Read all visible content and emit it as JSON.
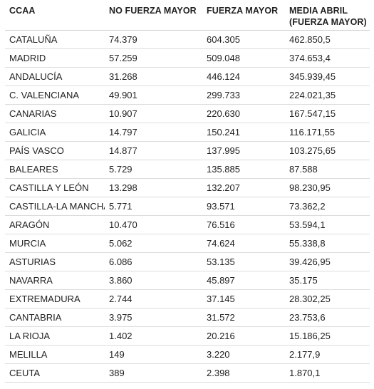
{
  "table": {
    "headers": [
      "CCAA",
      "NO FUERZA MAYOR",
      "FUERZA MAYOR",
      "MEDIA ABRIL (FUERZA MAYOR)"
    ],
    "rows": [
      [
        "CATALUÑA",
        "74.379",
        "604.305",
        "462.850,5"
      ],
      [
        "MADRID",
        "57.259",
        "509.048",
        "374.653,4"
      ],
      [
        "ANDALUCÍA",
        "31.268",
        "446.124",
        "345.939,45"
      ],
      [
        "C. VALENCIANA",
        "49.901",
        "299.733",
        "224.021,35"
      ],
      [
        "CANARIAS",
        "10.907",
        "220.630",
        "167.547,15"
      ],
      [
        "GALICIA",
        "14.797",
        "150.241",
        "116.171,55"
      ],
      [
        "PAÍS VASCO",
        "14.877",
        "137.995",
        "103.275,65"
      ],
      [
        "BALEARES",
        "5.729",
        "135.885",
        "87.588"
      ],
      [
        "CASTILLA Y LEÓN",
        "13.298",
        "132.207",
        "98.230,95"
      ],
      [
        "CASTILLA-LA MANCHA",
        "5.771",
        "93.571",
        "73.362,2"
      ],
      [
        "ARAGÓN",
        "10.470",
        "76.516",
        "53.594,1"
      ],
      [
        "MURCIA",
        "5.062",
        "74.624",
        "55.338,8"
      ],
      [
        "ASTURIAS",
        "6.086",
        "53.135",
        "39.426,95"
      ],
      [
        "NAVARRA",
        "3.860",
        "45.897",
        "35.175"
      ],
      [
        "EXTREMADURA",
        "2.744",
        "37.145",
        "28.302,25"
      ],
      [
        "CANTABRIA",
        "3.975",
        "31.572",
        "23.753,6"
      ],
      [
        "LA RIOJA",
        "1.402",
        "20.216",
        "15.186,25"
      ],
      [
        "MELILLA",
        "149",
        "3.220",
        "2.177,9"
      ],
      [
        "CEUTA",
        "389",
        "2.398",
        "1.870,1"
      ]
    ]
  }
}
